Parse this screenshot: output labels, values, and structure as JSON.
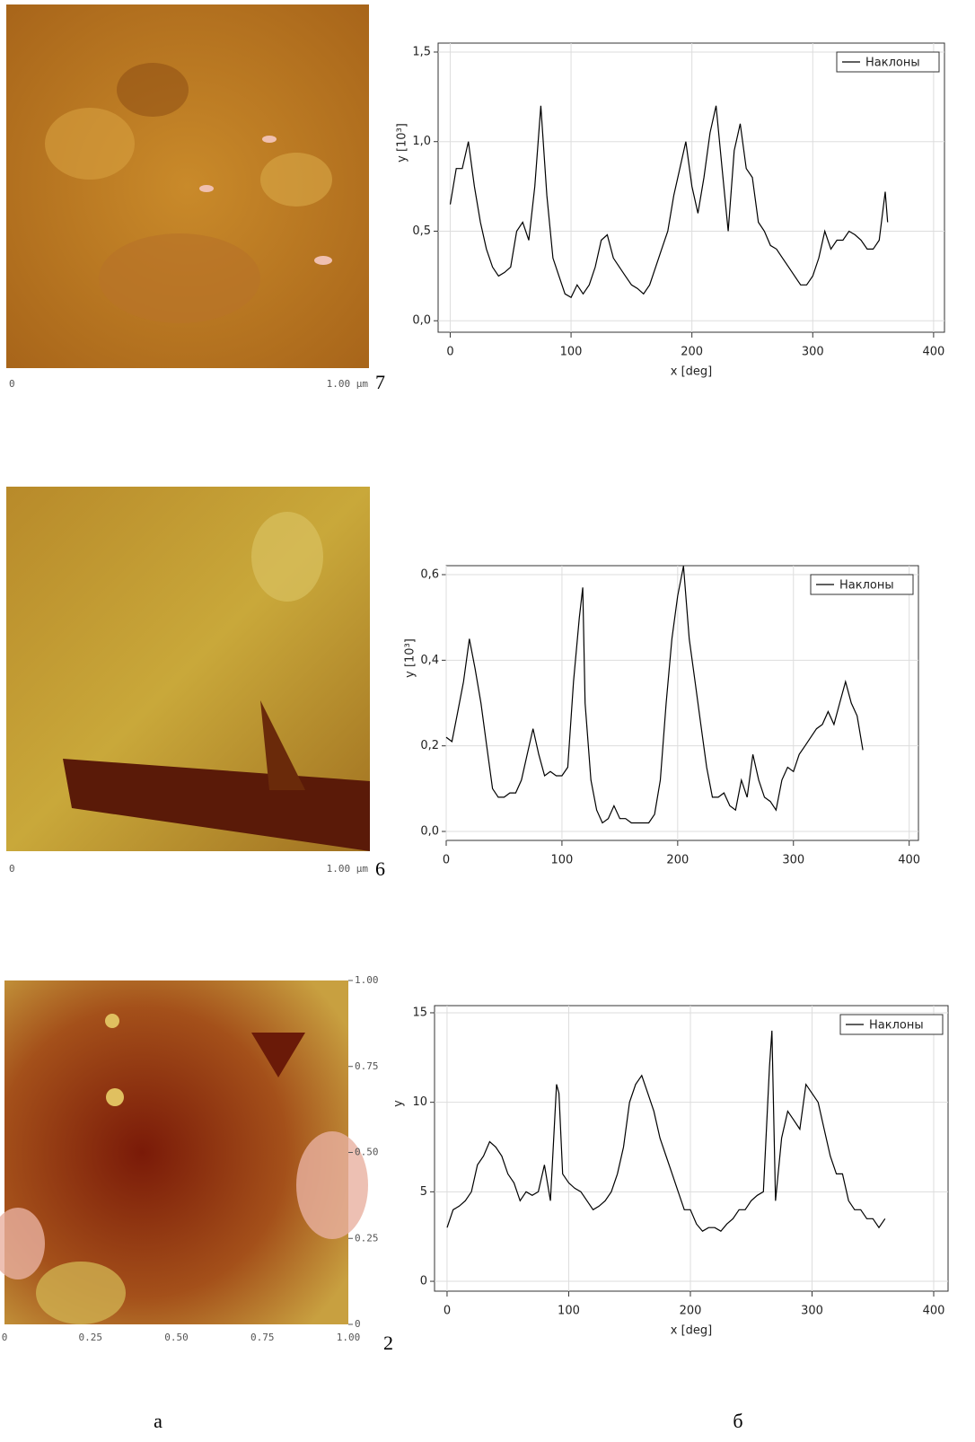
{
  "chart_data": [
    {
      "type": "line",
      "ylabel": "y [10³]",
      "xlabel": "x [deg]",
      "legend": "upper right",
      "grid": true,
      "xlim": [
        -10,
        409
      ],
      "ylim": [
        -0.064,
        1.55
      ],
      "xticks": [
        0,
        100,
        200,
        300,
        400
      ],
      "yticks": [
        {
          "value": 0,
          "label": "0,0"
        },
        {
          "value": 0.5,
          "label": "0,5"
        },
        {
          "value": 1,
          "label": "1,0"
        },
        {
          "value": 1.5,
          "label": "1,5"
        }
      ],
      "x": [
        0,
        5,
        10,
        15,
        20,
        25,
        30,
        35,
        40,
        45,
        50,
        55,
        60,
        65,
        70,
        75,
        80,
        85,
        90,
        95,
        100,
        105,
        110,
        115,
        120,
        125,
        130,
        135,
        140,
        145,
        150,
        155,
        160,
        165,
        170,
        175,
        180,
        185,
        190,
        195,
        200,
        205,
        210,
        215,
        220,
        225,
        230,
        235,
        240,
        245,
        250,
        255,
        260,
        265,
        270,
        275,
        280,
        285,
        290,
        295,
        300,
        305,
        310,
        315,
        320,
        325,
        330,
        335,
        340,
        345,
        350,
        355,
        360,
        362
      ],
      "series": [
        {
          "name": "Наклоны",
          "color": "#000000",
          "values": [
            0.65,
            0.85,
            0.85,
            1.0,
            0.75,
            0.55,
            0.4,
            0.3,
            0.25,
            0.27,
            0.3,
            0.5,
            0.55,
            0.45,
            0.75,
            1.2,
            0.7,
            0.35,
            0.25,
            0.15,
            0.13,
            0.2,
            0.15,
            0.2,
            0.3,
            0.45,
            0.48,
            0.35,
            0.3,
            0.25,
            0.2,
            0.18,
            0.15,
            0.2,
            0.3,
            0.4,
            0.5,
            0.7,
            0.85,
            1.0,
            0.75,
            0.6,
            0.8,
            1.05,
            1.2,
            0.85,
            0.5,
            0.95,
            1.1,
            0.85,
            0.8,
            0.55,
            0.5,
            0.42,
            0.4,
            0.35,
            0.3,
            0.25,
            0.2,
            0.2,
            0.25,
            0.35,
            0.5,
            0.4,
            0.45,
            0.45,
            0.5,
            0.48,
            0.45,
            0.4,
            0.4,
            0.45,
            0.72,
            0.55
          ]
        }
      ]
    },
    {
      "type": "line",
      "ylabel": "y [10³]",
      "legend": "upper right",
      "grid": true,
      "xlim": [
        0,
        408
      ],
      "ylim": [
        -0.021,
        0.621
      ],
      "xticks": [
        0,
        100,
        200,
        300,
        400
      ],
      "yticks": [
        {
          "value": 0,
          "label": "0,0"
        },
        {
          "value": 0.2,
          "label": "0,2"
        },
        {
          "value": 0.4,
          "label": "0,4"
        },
        {
          "value": 0.6,
          "label": "0,6"
        }
      ],
      "x": [
        0,
        5,
        10,
        15,
        20,
        25,
        30,
        35,
        40,
        45,
        50,
        55,
        60,
        65,
        70,
        75,
        80,
        85,
        90,
        95,
        100,
        105,
        110,
        115,
        118,
        120,
        125,
        130,
        135,
        140,
        145,
        150,
        155,
        160,
        165,
        170,
        175,
        180,
        185,
        190,
        195,
        200,
        205,
        210,
        215,
        220,
        225,
        230,
        235,
        240,
        245,
        250,
        255,
        260,
        265,
        270,
        275,
        280,
        285,
        290,
        295,
        300,
        305,
        310,
        315,
        320,
        325,
        330,
        335,
        340,
        345,
        350,
        355,
        360
      ],
      "series": [
        {
          "name": "Наклоны",
          "color": "#000000",
          "values": [
            0.22,
            0.21,
            0.28,
            0.35,
            0.45,
            0.38,
            0.3,
            0.2,
            0.1,
            0.08,
            0.08,
            0.09,
            0.09,
            0.12,
            0.18,
            0.24,
            0.18,
            0.13,
            0.14,
            0.13,
            0.13,
            0.15,
            0.35,
            0.5,
            0.57,
            0.3,
            0.12,
            0.05,
            0.02,
            0.03,
            0.06,
            0.03,
            0.03,
            0.02,
            0.02,
            0.02,
            0.02,
            0.04,
            0.12,
            0.3,
            0.45,
            0.55,
            0.62,
            0.45,
            0.35,
            0.25,
            0.15,
            0.08,
            0.08,
            0.09,
            0.06,
            0.05,
            0.12,
            0.08,
            0.18,
            0.12,
            0.08,
            0.07,
            0.05,
            0.12,
            0.15,
            0.14,
            0.18,
            0.2,
            0.22,
            0.24,
            0.25,
            0.28,
            0.25,
            0.3,
            0.35,
            0.3,
            0.27,
            0.19
          ]
        }
      ]
    },
    {
      "type": "line",
      "ylabel": "y",
      "xlabel": "x [deg]",
      "legend": "upper right",
      "grid": true,
      "xlim": [
        -10.3,
        411.8
      ],
      "ylim": [
        -0.55,
        15.4
      ],
      "xticks": [
        0,
        100,
        200,
        300,
        400
      ],
      "yticks": [
        0,
        5,
        10,
        15
      ],
      "x": [
        0,
        5,
        10,
        15,
        20,
        25,
        30,
        35,
        40,
        45,
        50,
        55,
        60,
        65,
        70,
        75,
        80,
        85,
        90,
        92,
        95,
        100,
        105,
        110,
        115,
        120,
        125,
        130,
        135,
        140,
        145,
        150,
        155,
        160,
        165,
        170,
        175,
        180,
        185,
        190,
        195,
        200,
        205,
        210,
        215,
        220,
        225,
        230,
        235,
        240,
        245,
        250,
        255,
        260,
        265,
        267,
        270,
        275,
        280,
        285,
        290,
        295,
        300,
        305,
        310,
        315,
        320,
        325,
        330,
        335,
        340,
        345,
        350,
        355,
        360
      ],
      "series": [
        {
          "name": "Наклоны",
          "color": "#000000",
          "values": [
            3,
            4,
            4.2,
            4.5,
            5,
            6.5,
            7,
            7.8,
            7.5,
            7,
            6,
            5.5,
            4.5,
            5,
            4.8,
            5,
            6.5,
            4.5,
            11,
            10.5,
            6,
            5.5,
            5.2,
            5,
            4.5,
            4,
            4.2,
            4.5,
            5,
            6,
            7.5,
            10,
            11,
            11.5,
            10.5,
            9.5,
            8,
            7,
            6,
            5,
            4,
            4,
            3.2,
            2.8,
            3,
            3,
            2.8,
            3.2,
            3.5,
            4,
            4,
            4.5,
            4.8,
            5,
            12,
            14,
            4.5,
            8,
            9.5,
            9,
            8.5,
            11,
            10.5,
            10,
            8.5,
            7,
            6,
            6,
            4.5,
            4,
            4,
            3.5,
            3.5,
            3,
            3.5
          ]
        }
      ]
    }
  ],
  "images": [
    {
      "scale_start": "0",
      "scale_end": "1.00 µm",
      "number": "7"
    },
    {
      "scale_start": "0",
      "scale_end": "1.00 µm",
      "number": "6"
    },
    {
      "number": "2",
      "yticks": [
        "1.00",
        "0.75",
        "0.50",
        "0.25",
        "0"
      ],
      "xticks": [
        "0",
        "0.25",
        "0.50",
        "0.75",
        "1.00"
      ]
    }
  ],
  "panel_labels": [
    "а",
    "б"
  ]
}
